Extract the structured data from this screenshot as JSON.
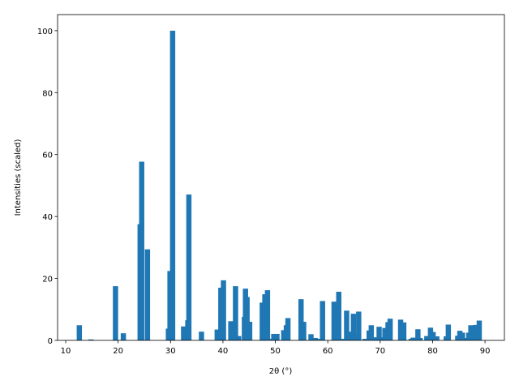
{
  "chart_data": {
    "type": "bar",
    "color": "#1f77b4",
    "x_label": "2θ (°)",
    "y_label": "Intensities (scaled)",
    "x": [
      12.6,
      14.8,
      19.5,
      21.0,
      24.2,
      24.5,
      25.6,
      29.6,
      29.9,
      30.4,
      32.5,
      33.3,
      33.5,
      35.9,
      38.9,
      39.6,
      40.1,
      41.5,
      42.4,
      43.0,
      44.1,
      44.3,
      44.6,
      45.1,
      47.5,
      48.0,
      48.5,
      49.1,
      49.7,
      50.3,
      51.6,
      52.1,
      52.4,
      54.9,
      55.4,
      56.8,
      57.6,
      58.0,
      59.0,
      61.2,
      61.6,
      62.1,
      63.0,
      63.6,
      64.0,
      64.9,
      65.3,
      65.9,
      67.1,
      67.9,
      68.3,
      69.2,
      69.8,
      70.3,
      70.9,
      71.5,
      71.9,
      73.9,
      74.5,
      75.9,
      76.3,
      77.2,
      77.6,
      78.9,
      79.6,
      80.1,
      80.8,
      82.6,
      83.0,
      84.8,
      85.2,
      85.7,
      86.4,
      86.9,
      87.3,
      88.2,
      88.9
    ],
    "values": [
      4.9,
      0.3,
      17.5,
      2.3,
      37.5,
      57.7,
      29.4,
      3.8,
      22.4,
      100,
      4.5,
      6.5,
      47.1,
      2.8,
      3.5,
      17,
      19.4,
      6.2,
      17.5,
      1.4,
      7.6,
      16.7,
      14,
      6,
      12.2,
      14.9,
      16.2,
      0.5,
      2.1,
      2.1,
      3.3,
      4.9,
      7.2,
      13.3,
      6,
      2.0,
      0.8,
      0.5,
      12.7,
      12.5,
      5.3,
      15.7,
      0.5,
      9.6,
      2.8,
      8.6,
      2.0,
      9.3,
      0.5,
      3.2,
      4.9,
      1.0,
      4.4,
      1.0,
      4.0,
      5.9,
      7.0,
      6.7,
      5.8,
      0.5,
      0.9,
      3.6,
      0.8,
      1.4,
      4.1,
      2.7,
      1.3,
      1.3,
      5.1,
      1.5,
      3.1,
      2.5,
      0.8,
      2.5,
      4.9,
      5.0,
      6.4
    ],
    "xlim": [
      8.45,
      93.7
    ],
    "ylim": [
      0,
      105.2
    ],
    "xticks": [
      10,
      20,
      30,
      40,
      50,
      60,
      70,
      80,
      90
    ],
    "yticks": [
      0,
      20,
      40,
      60,
      80,
      100
    ]
  }
}
